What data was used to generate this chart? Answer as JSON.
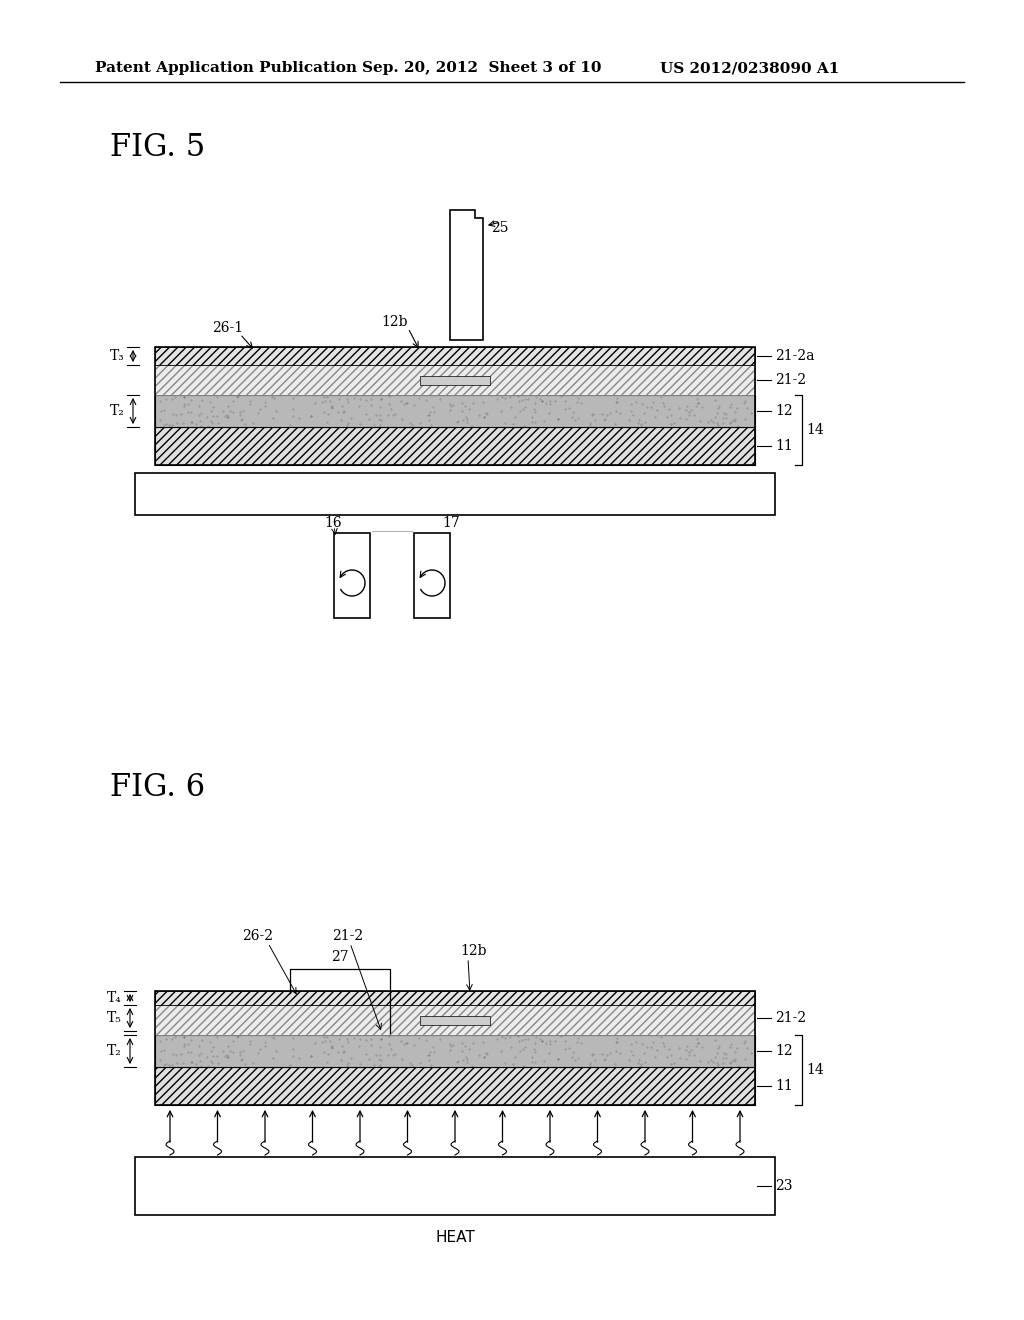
{
  "bg_color": "#ffffff",
  "header_text1": "Patent Application Publication",
  "header_text2": "Sep. 20, 2012  Sheet 3 of 10",
  "header_text3": "US 2012/0238090 A1",
  "fig5_label": "FIG. 5",
  "fig6_label": "FIG. 6",
  "heat_label": "HEAT"
}
